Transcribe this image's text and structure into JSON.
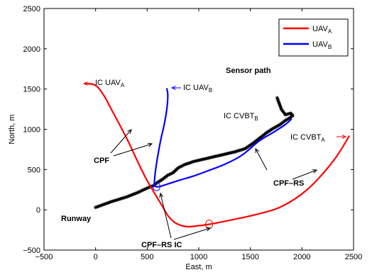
{
  "chart_data": {
    "type": "line",
    "title": "",
    "xlabel": "East, m",
    "ylabel": "North, m",
    "xlim": [
      -500,
      2500
    ],
    "ylim": [
      -500,
      2500
    ],
    "xticks": [
      -500,
      0,
      500,
      1000,
      1500,
      2000,
      2500
    ],
    "yticks": [
      -500,
      0,
      500,
      1000,
      1500,
      2000,
      2500
    ],
    "grid": false,
    "legend_position": "top-right",
    "series": [
      {
        "name": "UAV",
        "subscript": "A",
        "color": "#ff0000",
        "x": [
          -110,
          0,
          80,
          160,
          240,
          320,
          400,
          480,
          560,
          640,
          700,
          760,
          830,
          900,
          980,
          1100,
          1300,
          1550,
          1800,
          2050,
          2300,
          2460
        ],
        "y": [
          1570,
          1545,
          1420,
          1230,
          1040,
          840,
          620,
          410,
          230,
          60,
          -70,
          -150,
          -195,
          -210,
          -200,
          -180,
          -130,
          -60,
          40,
          250,
          600,
          920
        ]
      },
      {
        "name": "UAV",
        "subscript": "B",
        "color": "#0000ff",
        "x": [
          690,
          700,
          690,
          665,
          630,
          600,
          580,
          570,
          575,
          600,
          650,
          720,
          820,
          950,
          1100,
          1260,
          1420,
          1580,
          1720,
          1840,
          1900
        ],
        "y": [
          1510,
          1420,
          1250,
          1060,
          860,
          650,
          480,
          350,
          300,
          285,
          300,
          330,
          370,
          420,
          490,
          570,
          680,
          850,
          960,
          1060,
          1130
        ]
      }
    ],
    "sensor_path": {
      "x": [
        0,
        150,
        300,
        400,
        500,
        560,
        600,
        650,
        700,
        750,
        800,
        860,
        950,
        1050,
        1150,
        1250,
        1350,
        1450,
        1530,
        1600,
        1660,
        1720,
        1790,
        1840,
        1880,
        1910,
        1890,
        1840,
        1800,
        1780,
        1760
      ],
      "y": [
        30,
        100,
        160,
        210,
        270,
        300,
        340,
        380,
        430,
        460,
        520,
        560,
        600,
        630,
        660,
        690,
        720,
        760,
        830,
        900,
        960,
        1010,
        1060,
        1110,
        1140,
        1170,
        1200,
        1180,
        1250,
        1320,
        1390
      ]
    },
    "markers": [
      {
        "type": "circle",
        "color": "#0000ff",
        "x": 590,
        "y": 290
      },
      {
        "type": "circle",
        "color": "#ff0000",
        "x": 1100,
        "y": -180
      }
    ],
    "legend": [
      {
        "label": "UAV",
        "subscript": "A",
        "color": "#ff0000"
      },
      {
        "label": "UAV",
        "subscript": "B",
        "color": "#0000ff"
      }
    ],
    "annotations": [
      {
        "text": "Sensor path",
        "bold": true,
        "color": "#000000"
      },
      {
        "text": "IC UAV",
        "subscript": "A",
        "bold": false,
        "color": "#ff0000"
      },
      {
        "text": "IC UAV",
        "subscript": "B",
        "bold": false,
        "color": "#0000ff"
      },
      {
        "text": "IC CVBT",
        "subscript": "B",
        "bold": false,
        "color": "#0000ff"
      },
      {
        "text": "IC CVBT",
        "subscript": "A",
        "bold": false,
        "color": "#ff0000"
      },
      {
        "text": "CPF",
        "bold": true,
        "color": "#000000"
      },
      {
        "text": "CPF–RS",
        "bold": true,
        "color": "#000000"
      },
      {
        "text": "Runway",
        "bold": true,
        "color": "#000000"
      },
      {
        "text": "CPF–RS IC",
        "bold": true,
        "color": "#000000"
      }
    ]
  }
}
